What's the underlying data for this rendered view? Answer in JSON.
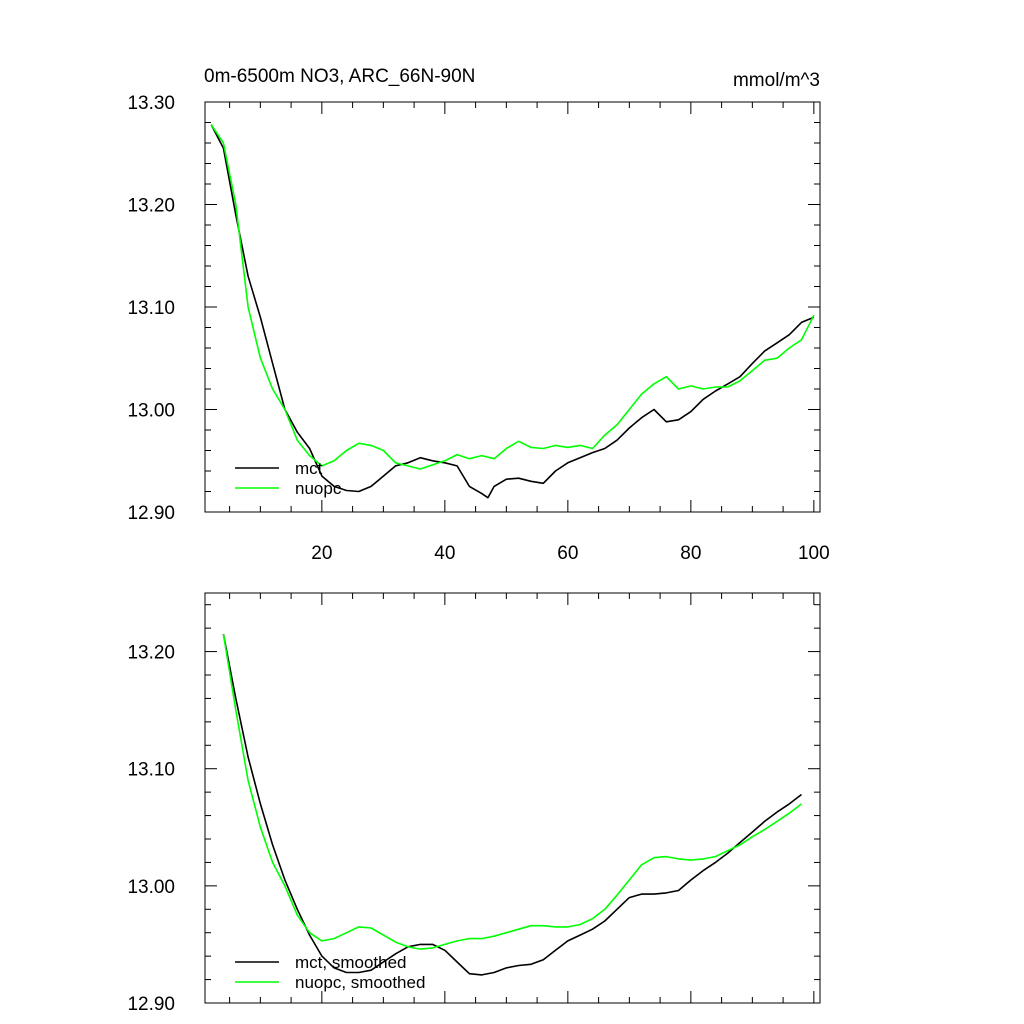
{
  "chart_data": [
    {
      "type": "line",
      "title": "0m-6500m NO3, ARC_66N-90N",
      "units": "mmol/m^3",
      "xlim": [
        1,
        101
      ],
      "ylim": [
        12.9,
        13.3
      ],
      "x_ticks": [
        20,
        40,
        60,
        80,
        100
      ],
      "y_ticks": [
        12.9,
        13.0,
        13.1,
        13.2,
        13.3
      ],
      "y_tick_labels": [
        "12.90",
        "13.00",
        "13.10",
        "13.20",
        "13.30"
      ],
      "legend_position": "bottom-left",
      "series": [
        {
          "name": "mct",
          "color": "#000000",
          "x": [
            2,
            4,
            6,
            8,
            10,
            12,
            14,
            16,
            18,
            20,
            22,
            24,
            26,
            28,
            30,
            32,
            34,
            36,
            38,
            40,
            42,
            44,
            46,
            47,
            48,
            50,
            52,
            54,
            56,
            58,
            60,
            62,
            64,
            66,
            68,
            70,
            72,
            74,
            76,
            78,
            80,
            82,
            84,
            86,
            88,
            90,
            92,
            94,
            96,
            98,
            100
          ],
          "values": [
            13.278,
            13.255,
            13.19,
            13.13,
            13.09,
            13.045,
            13.0,
            12.978,
            12.962,
            12.935,
            12.925,
            12.921,
            12.92,
            12.925,
            12.935,
            12.945,
            12.948,
            12.953,
            12.95,
            12.948,
            12.945,
            12.925,
            12.918,
            12.914,
            12.925,
            12.932,
            12.933,
            12.93,
            12.928,
            12.94,
            12.948,
            12.953,
            12.958,
            12.962,
            12.97,
            12.982,
            12.992,
            13.0,
            12.988,
            12.99,
            12.998,
            13.01,
            13.018,
            13.025,
            13.032,
            13.045,
            13.057,
            13.065,
            13.073,
            13.085,
            13.09
          ]
        },
        {
          "name": "nuopc",
          "color": "#00ff00",
          "x": [
            2,
            4,
            6,
            8,
            10,
            12,
            14,
            16,
            18,
            20,
            22,
            24,
            26,
            28,
            30,
            32,
            34,
            36,
            38,
            40,
            42,
            44,
            46,
            48,
            50,
            52,
            54,
            56,
            58,
            60,
            62,
            64,
            66,
            68,
            70,
            72,
            74,
            76,
            78,
            80,
            82,
            84,
            86,
            88,
            90,
            92,
            94,
            96,
            98,
            100
          ],
          "values": [
            13.278,
            13.26,
            13.2,
            13.1,
            13.05,
            13.02,
            13.0,
            12.97,
            12.955,
            12.945,
            12.95,
            12.96,
            12.967,
            12.965,
            12.96,
            12.948,
            12.945,
            12.942,
            12.946,
            12.95,
            12.956,
            12.952,
            12.955,
            12.952,
            12.962,
            12.969,
            12.963,
            12.962,
            12.965,
            12.963,
            12.965,
            12.962,
            12.975,
            12.985,
            13.0,
            13.015,
            13.025,
            13.032,
            13.02,
            13.023,
            13.02,
            13.022,
            13.022,
            13.028,
            13.038,
            13.048,
            13.05,
            13.06,
            13.068,
            13.092
          ]
        }
      ]
    },
    {
      "type": "line",
      "xlim": [
        1,
        101
      ],
      "ylim": [
        12.9,
        13.25
      ],
      "x_ticks": [
        20,
        40,
        60,
        80,
        100
      ],
      "y_ticks": [
        12.9,
        13.0,
        13.1,
        13.2
      ],
      "y_tick_labels": [
        "12.90",
        "13.00",
        "13.10",
        "13.20"
      ],
      "legend_position": "bottom-left",
      "series": [
        {
          "name": "mct, smoothed",
          "color": "#000000",
          "x": [
            4,
            6,
            8,
            10,
            12,
            14,
            16,
            18,
            20,
            22,
            24,
            26,
            28,
            30,
            32,
            34,
            36,
            38,
            40,
            42,
            44,
            46,
            48,
            50,
            52,
            54,
            56,
            58,
            60,
            62,
            64,
            66,
            68,
            70,
            72,
            74,
            76,
            78,
            80,
            82,
            84,
            86,
            88,
            90,
            92,
            94,
            96,
            98
          ],
          "values": [
            13.215,
            13.16,
            13.11,
            13.07,
            13.035,
            13.005,
            12.98,
            12.958,
            12.94,
            12.93,
            12.926,
            12.926,
            12.928,
            12.935,
            12.942,
            12.948,
            12.95,
            12.95,
            12.945,
            12.935,
            12.925,
            12.924,
            12.926,
            12.93,
            12.932,
            12.933,
            12.937,
            12.945,
            12.953,
            12.958,
            12.963,
            12.97,
            12.98,
            12.99,
            12.993,
            12.993,
            12.994,
            12.996,
            13.005,
            13.013,
            13.02,
            13.028,
            13.037,
            13.046,
            13.055,
            13.063,
            13.07,
            13.078
          ]
        },
        {
          "name": "nuopc, smoothed",
          "color": "#00ff00",
          "x": [
            4,
            6,
            8,
            10,
            12,
            14,
            16,
            18,
            20,
            22,
            24,
            26,
            28,
            30,
            32,
            34,
            36,
            38,
            40,
            42,
            44,
            46,
            48,
            50,
            52,
            54,
            56,
            58,
            60,
            62,
            64,
            66,
            68,
            70,
            72,
            74,
            76,
            78,
            80,
            82,
            84,
            86,
            88,
            90,
            92,
            94,
            96,
            98
          ],
          "values": [
            13.215,
            13.15,
            13.09,
            13.05,
            13.02,
            13.0,
            12.975,
            12.96,
            12.953,
            12.955,
            12.96,
            12.965,
            12.964,
            12.958,
            12.952,
            12.948,
            12.946,
            12.947,
            12.95,
            12.953,
            12.955,
            12.955,
            12.957,
            12.96,
            12.963,
            12.966,
            12.966,
            12.965,
            12.965,
            12.967,
            12.972,
            12.98,
            12.992,
            13.005,
            13.018,
            13.024,
            13.025,
            13.023,
            13.022,
            13.023,
            13.025,
            13.03,
            13.035,
            13.042,
            13.048,
            13.055,
            13.062,
            13.07
          ]
        }
      ]
    }
  ]
}
